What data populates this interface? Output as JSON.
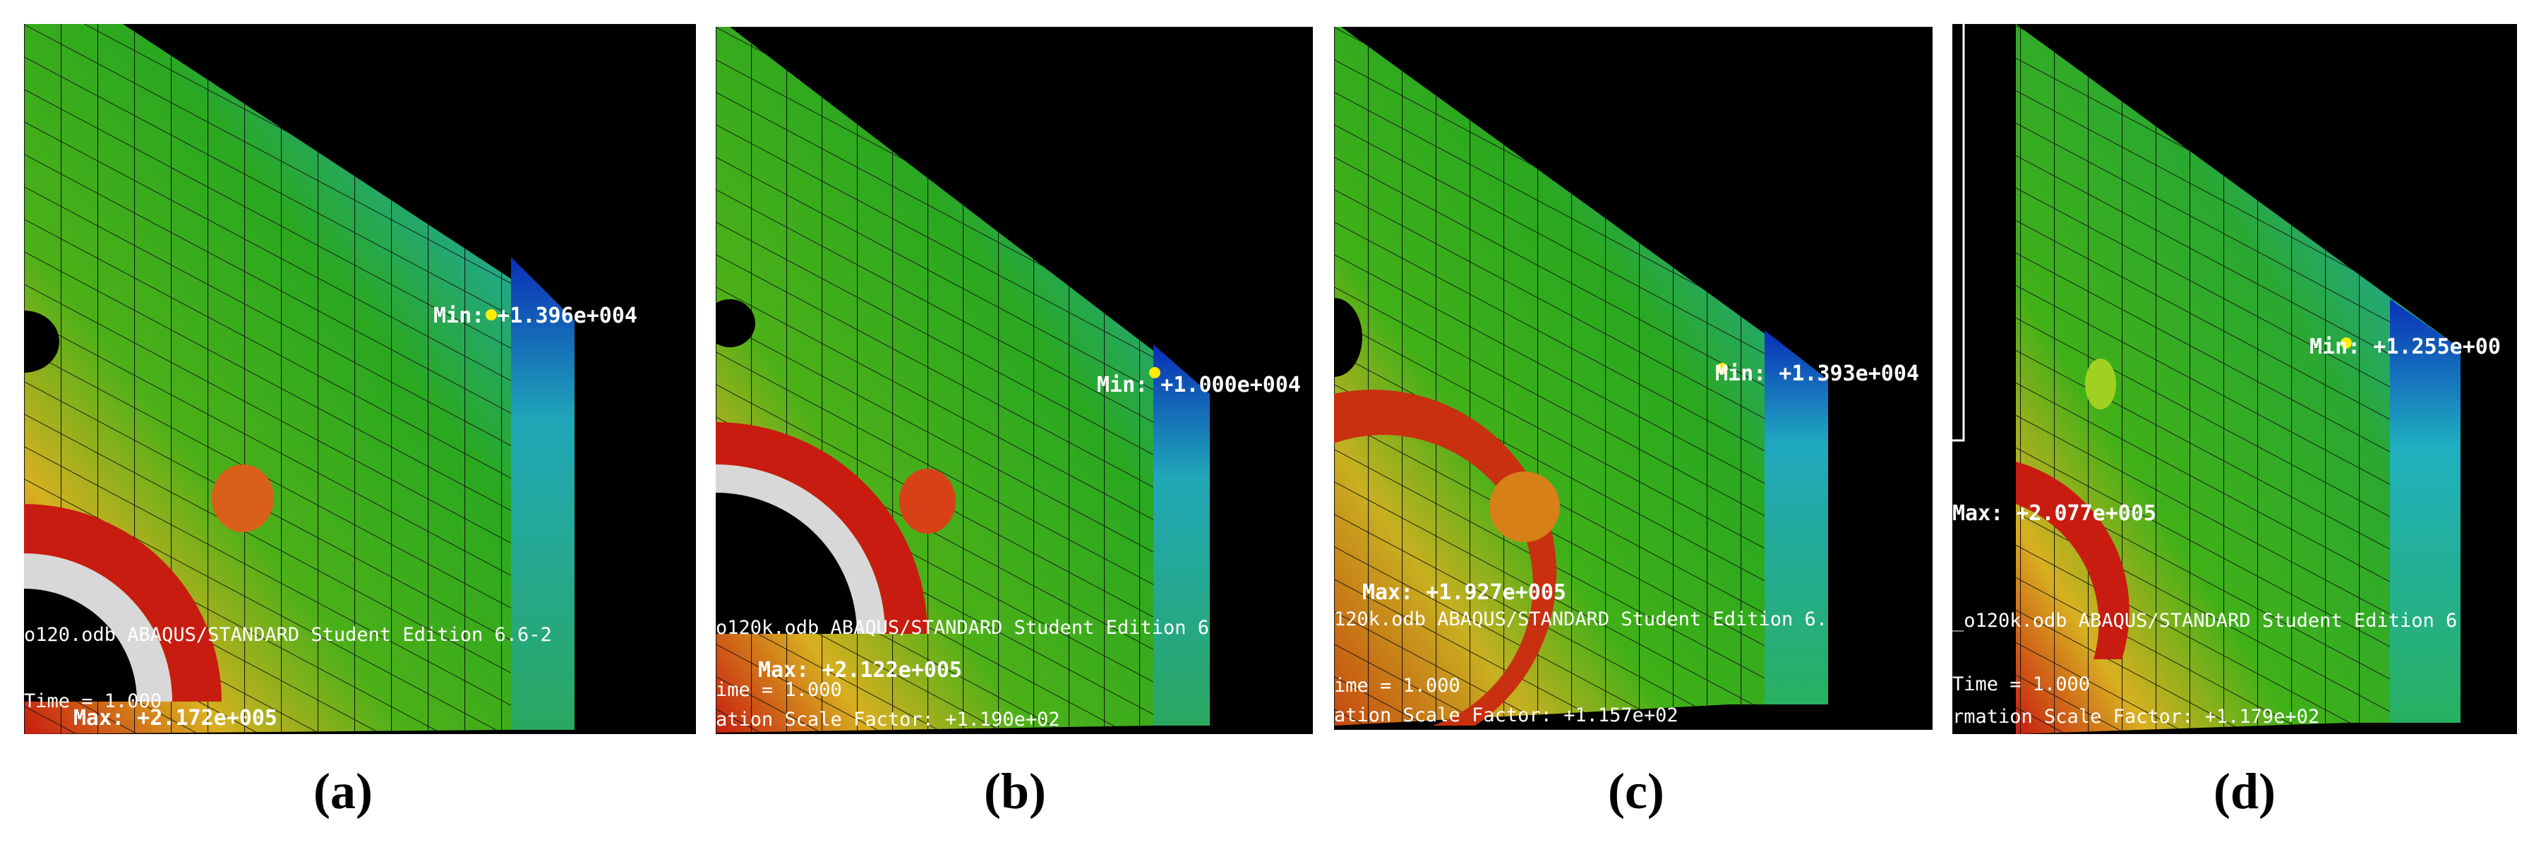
{
  "colors": {
    "background": "#000000",
    "contour_low": "#0a2fb8",
    "contour_mid": "#2aa820",
    "contour_high": "#d81a10",
    "marker": "#ffee00",
    "mesh": "#111111",
    "text": "#ffffff"
  },
  "panels": [
    {
      "caption": "(a)",
      "min_label": "Min: +1.396e+004",
      "max_label": "Max: +2.172e+005",
      "odb_text": "o120.odb   ABAQUS/STANDARD Student Edition 6.6-2",
      "time_text": "Time =    1.000",
      "scale_text": ""
    },
    {
      "caption": "(b)",
      "min_label": "Min: +1.000e+004",
      "max_label": "Max: +2.122e+005",
      "odb_text": "o120k.odb   ABAQUS/STANDARD Student Edition 6",
      "time_text": "ime =    1.000",
      "scale_text": "ation Scale Factor: +1.190e+02"
    },
    {
      "caption": "(c)",
      "min_label": "Min: +1.393e+004",
      "max_label": "Max: +1.927e+005",
      "odb_text": "120k.odb   ABAQUS/STANDARD Student Edition 6.",
      "time_text": "ime =    1.000",
      "scale_text": "ation Scale Factor: +1.157e+02"
    },
    {
      "caption": "(d)",
      "min_label": "Min: +1.255e+00",
      "max_label": "Max: +2.077e+005",
      "odb_text": "_o120k.odb   ABAQUS/STANDARD Student Edition 6",
      "time_text": "Time =    1.000",
      "scale_text": "rmation Scale Factor: +1.179e+02"
    }
  ]
}
